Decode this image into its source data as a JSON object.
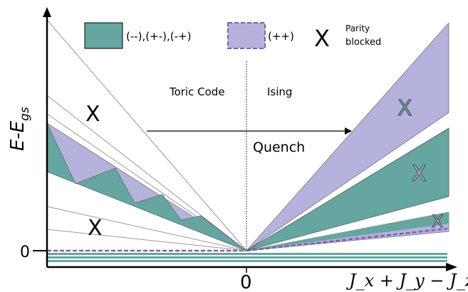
{
  "axes": {
    "y_label_main": "E-E",
    "y_label_sub": "gs",
    "x_label": "J_x + J_y − J_z",
    "y_zero_tick": "0",
    "x_zero_tick": "0"
  },
  "legend": {
    "teal_label": "(--),(+-),(-+)",
    "purple_label": "(++)",
    "cross_symbol": "X",
    "cross_label_line1": "Parity",
    "cross_label_line2": "blocked"
  },
  "regions": {
    "left_label": "Toric Code",
    "right_label": "Ising",
    "quench_label": "Quench"
  },
  "markers": {
    "cross": "X"
  },
  "colors": {
    "teal": "#66a6a1",
    "purple": "#b5b3dd",
    "purple_dash": "#7e5fb0",
    "line_gray": "#999999",
    "axis": "#000000"
  }
}
